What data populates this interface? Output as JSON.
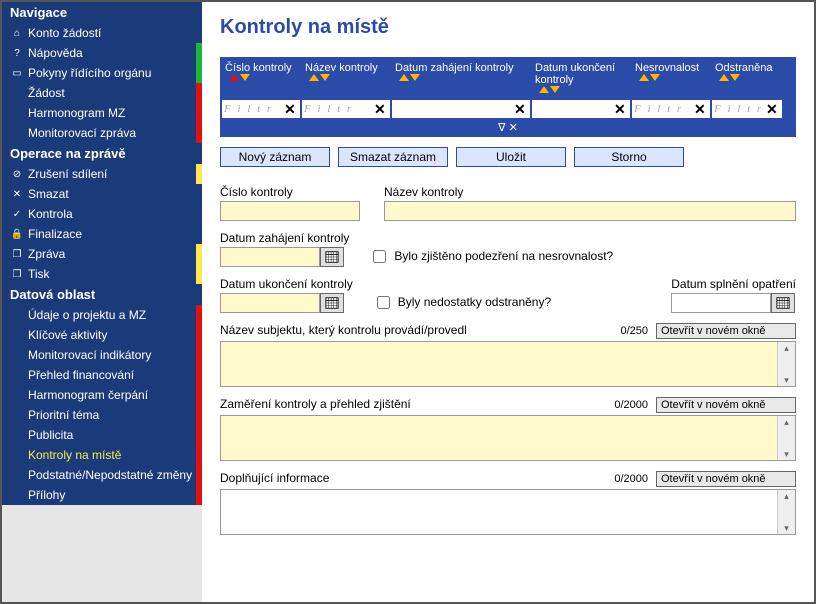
{
  "colors": {
    "nav_bg": "#1a3a7a",
    "accent": "#2a4ba8",
    "btn_bg": "#dbe5ff",
    "field_bg": "#fff9cc",
    "marker_green": "#1fb53a",
    "marker_red": "#d11",
    "marker_yellow": "#ffe74c",
    "selected_text": "#ffe74c"
  },
  "sidebar": {
    "sections": [
      {
        "title": "Navigace",
        "items": [
          {
            "icon": "⌂",
            "label": "Konto žádostí",
            "marker": ""
          },
          {
            "icon": "?",
            "label": "Nápověda",
            "marker": "green"
          },
          {
            "icon": "▭",
            "label": "Pokyny řídícího orgánu",
            "marker": "green"
          },
          {
            "icon": "",
            "label": "Žádost",
            "marker": "red"
          },
          {
            "icon": "",
            "label": "Harmonogram MZ",
            "marker": "red"
          },
          {
            "icon": "",
            "label": "Monitorovací zpráva",
            "marker": "red"
          }
        ]
      },
      {
        "title": "Operace na zprávě",
        "items": [
          {
            "icon": "⊘",
            "label": "Zrušení sdílení",
            "marker": "yellow"
          },
          {
            "icon": "✕",
            "label": "Smazat",
            "marker": ""
          },
          {
            "icon": "✓",
            "label": "Kontrola",
            "marker": ""
          },
          {
            "icon": "🔒",
            "label": "Finalizace",
            "marker": ""
          },
          {
            "icon": "❐",
            "label": "Zpráva",
            "marker": "yellow"
          },
          {
            "icon": "❐",
            "label": "Tisk",
            "marker": "yellow"
          }
        ]
      },
      {
        "title": "Datová oblast",
        "items": [
          {
            "icon": "",
            "label": "Údaje o projektu a MZ",
            "marker": "red"
          },
          {
            "icon": "",
            "label": "Klíčové aktivity",
            "marker": "red"
          },
          {
            "icon": "",
            "label": "Monitorovací indikátory",
            "marker": "red"
          },
          {
            "icon": "",
            "label": "Přehled financování",
            "marker": "red"
          },
          {
            "icon": "",
            "label": "Harmonogram čerpání",
            "marker": "red"
          },
          {
            "icon": "",
            "label": "Prioritní téma",
            "marker": "red"
          },
          {
            "icon": "",
            "label": "Publicita",
            "marker": "red"
          },
          {
            "icon": "",
            "label": "Kontroly na místě",
            "marker": "red",
            "selected": true
          },
          {
            "icon": "",
            "label": "Podstatné/Nepodstatné změny",
            "marker": "red"
          },
          {
            "icon": "",
            "label": "Přílohy",
            "marker": "red"
          }
        ]
      }
    ]
  },
  "page": {
    "title": "Kontroly na místě"
  },
  "table": {
    "columns": [
      {
        "label": "Číslo kontroly",
        "w": 80,
        "filter": "F i l t r",
        "firstRed": true
      },
      {
        "label": "Název kontroly",
        "w": 90,
        "filter": "F i l t r"
      },
      {
        "label": "Datum zahájení kontroly",
        "w": 140,
        "filter": ""
      },
      {
        "label": "Datum ukončení kontroly",
        "w": 100,
        "filter": ""
      },
      {
        "label": "Nesrovnalost",
        "w": 80,
        "filter": "F i l t r"
      },
      {
        "label": "Odstraněna",
        "w": 72,
        "filter": "F i l t r"
      }
    ],
    "funnel": "∇  ✕"
  },
  "buttons": {
    "new": "Nový záznam",
    "delete": "Smazat záznam",
    "save": "Uložit",
    "cancel": "Storno"
  },
  "form": {
    "cislo_label": "Číslo kontroly",
    "nazev_label": "Název kontroly",
    "datum_zahajeni_label": "Datum zahájení kontroly",
    "datum_ukonceni_label": "Datum ukončení kontroly",
    "datum_splneni_label": "Datum splnění opatření",
    "chk1_label": "Bylo zjištěno podezření na nesrovnalost?",
    "chk2_label": "Byly nedostatky odstraněny?",
    "ta1_label": "Název subjektu, který kontrolu provádí/provedl",
    "ta1_count": "0/250",
    "ta2_label": "Zaměření kontroly a přehled zjištění",
    "ta2_count": "0/2000",
    "ta3_label": "Doplňující informace",
    "ta3_count": "0/2000",
    "open_btn": "Otevřít v novém okně"
  }
}
